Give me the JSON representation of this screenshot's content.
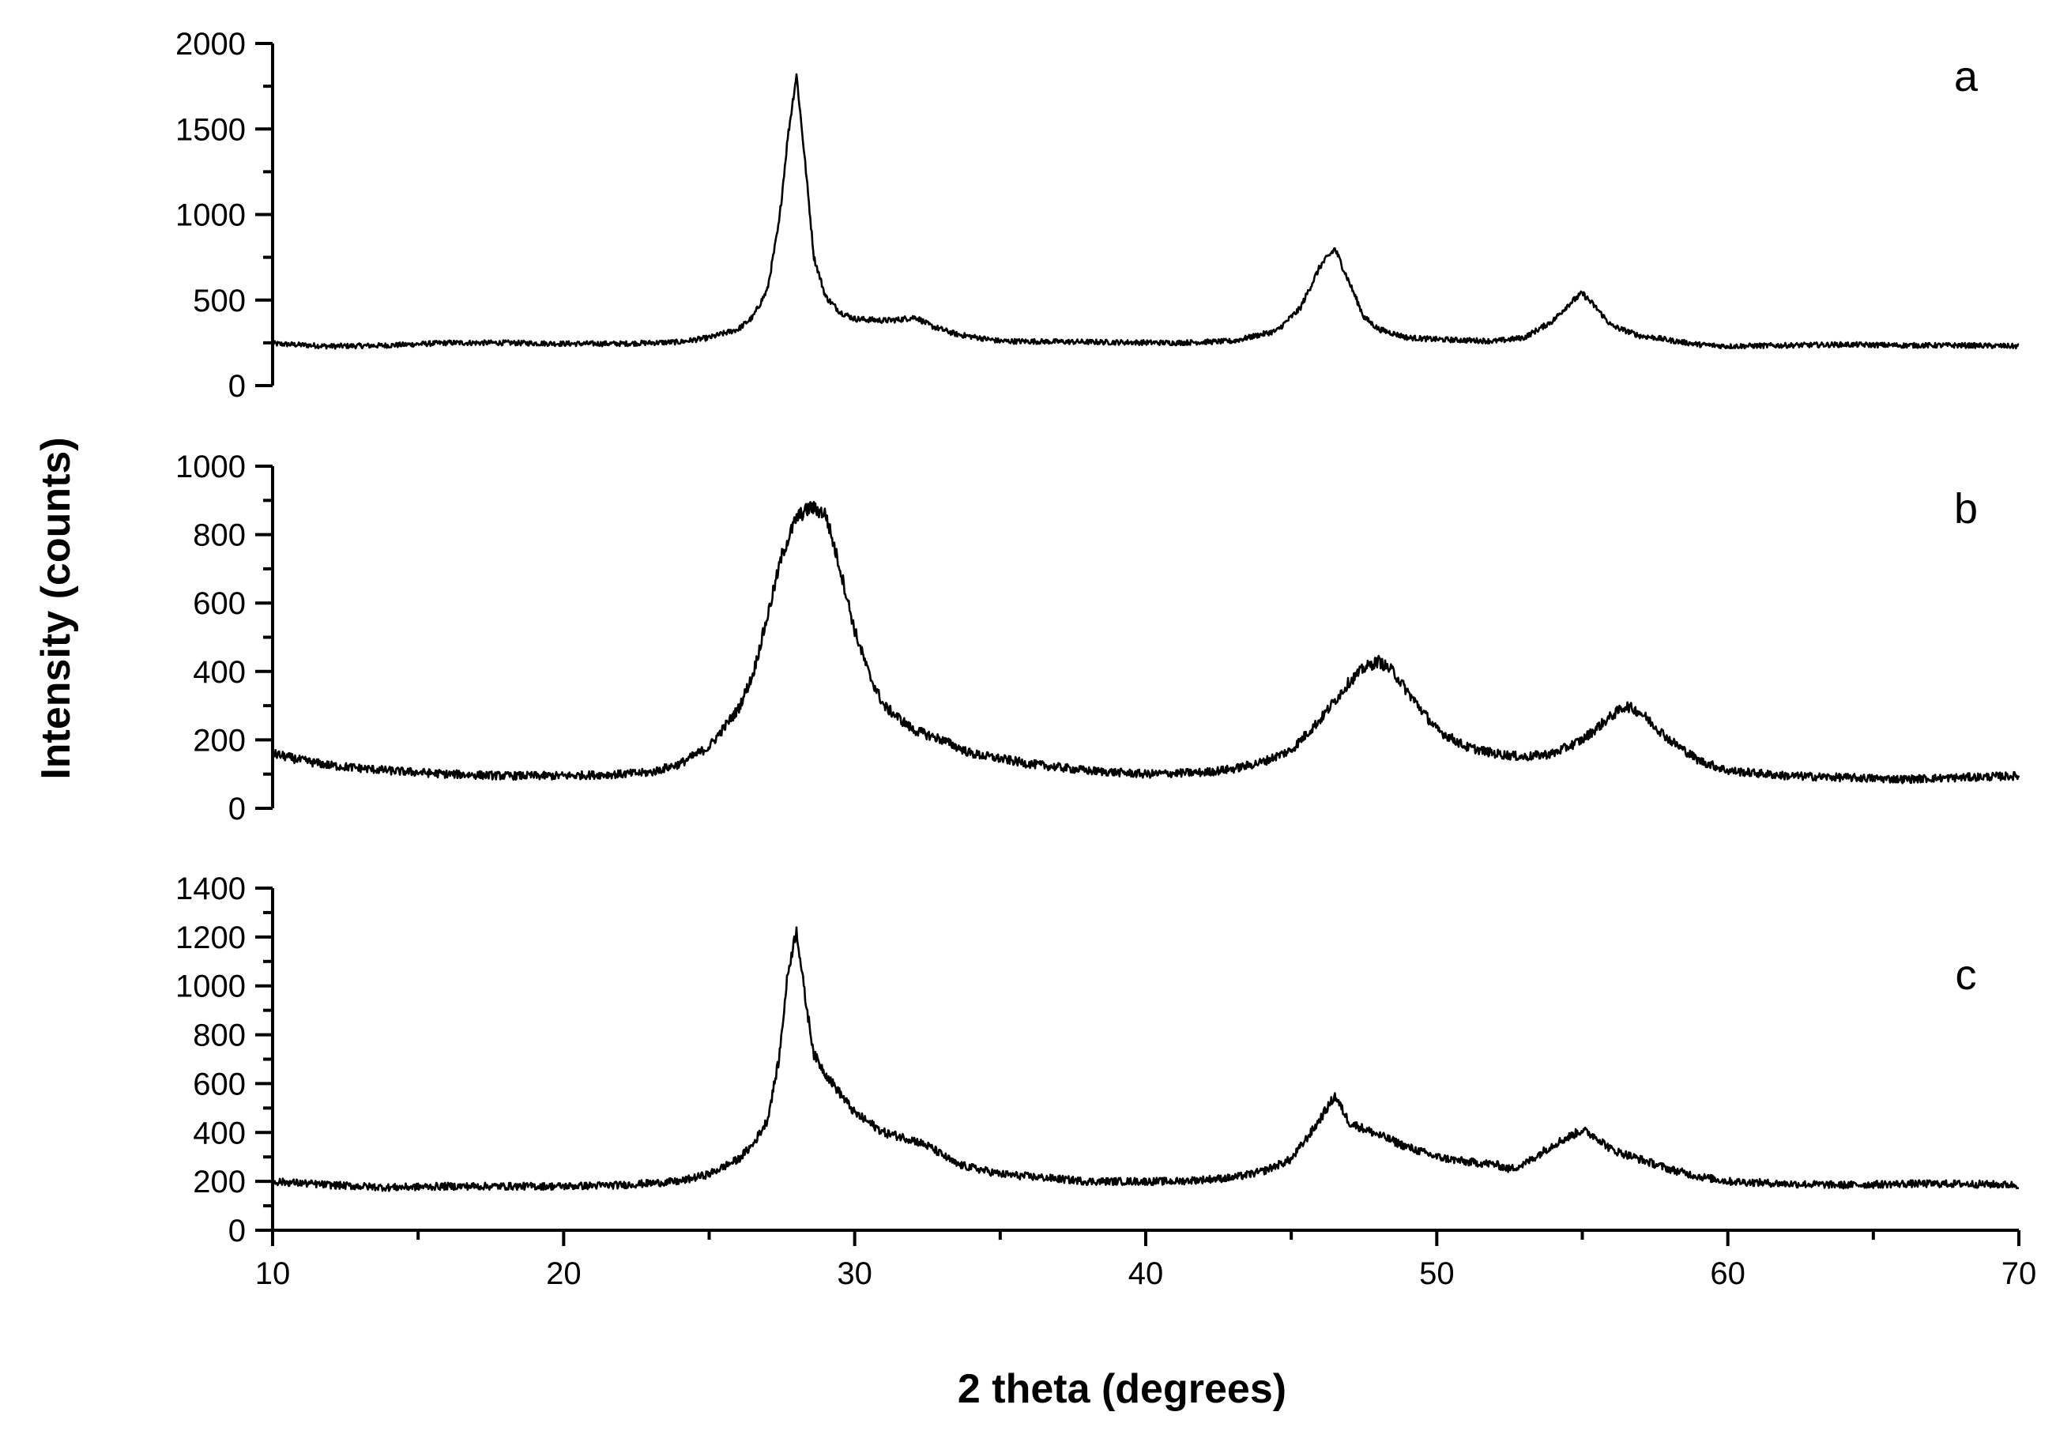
{
  "chart_data": {
    "type": "line",
    "xlabel": "2 theta (degrees)",
    "ylabel": "Intensity (counts)",
    "xlim": [
      10,
      70
    ],
    "x_ticks": [
      10,
      20,
      30,
      40,
      50,
      60,
      70
    ],
    "x_minor_step": 5,
    "grid": false,
    "legend": "none",
    "line_color": "#000000",
    "panels": [
      {
        "label": "a",
        "ylim": [
          0,
          2000
        ],
        "y_ticks": [
          0,
          500,
          1000,
          1500,
          2000
        ],
        "y_minor_step": 250,
        "baseline": 240,
        "noise": 15,
        "x": [
          10,
          12,
          14,
          16,
          18,
          20,
          22,
          24,
          25,
          26,
          26.5,
          27,
          27.4,
          27.7,
          28.0,
          28.3,
          28.6,
          29.0,
          29.5,
          30,
          31,
          31.5,
          32.1,
          32.6,
          33.5,
          35,
          38,
          41,
          43,
          44.5,
          45.3,
          46.0,
          46.5,
          47.0,
          47.5,
          48,
          49,
          50,
          52,
          53,
          54,
          54.5,
          55.0,
          55.5,
          56,
          57,
          57.5,
          58,
          59,
          60,
          62,
          64,
          66,
          68,
          70
        ],
        "y": [
          245,
          230,
          235,
          250,
          250,
          245,
          245,
          255,
          280,
          330,
          400,
          560,
          950,
          1450,
          1820,
          1300,
          750,
          520,
          430,
          390,
          380,
          385,
          400,
          350,
          300,
          260,
          255,
          250,
          260,
          320,
          450,
          700,
          800,
          600,
          400,
          330,
          280,
          270,
          260,
          280,
          380,
          470,
          540,
          450,
          350,
          290,
          280,
          265,
          240,
          230,
          235,
          240,
          235,
          235,
          230
        ]
      },
      {
        "label": "b",
        "ylim": [
          0,
          1000
        ],
        "y_ticks": [
          0,
          200,
          400,
          600,
          800,
          1000
        ],
        "y_minor_step": 100,
        "baseline": 100,
        "noise": 12,
        "x": [
          10,
          11,
          12,
          14,
          16,
          18,
          20,
          22,
          23,
          24,
          25,
          26,
          26.5,
          27,
          27.5,
          28,
          28.5,
          29,
          29.5,
          30,
          30.5,
          31,
          32,
          33,
          34,
          36,
          38,
          40,
          42,
          43,
          44,
          45,
          46,
          47,
          47.5,
          48,
          48.5,
          49,
          50,
          51,
          52,
          53,
          54,
          55,
          56,
          56.5,
          57,
          58,
          59,
          60,
          62,
          64,
          66,
          68,
          70
        ],
        "y": [
          160,
          140,
          125,
          110,
          100,
          95,
          95,
          100,
          105,
          130,
          180,
          290,
          390,
          560,
          740,
          850,
          880,
          860,
          700,
          520,
          390,
          300,
          230,
          200,
          160,
          130,
          110,
          100,
          105,
          115,
          135,
          170,
          260,
          370,
          410,
          430,
          400,
          340,
          230,
          180,
          160,
          150,
          160,
          200,
          270,
          300,
          280,
          200,
          140,
          110,
          95,
          90,
          85,
          90,
          95
        ]
      },
      {
        "label": "c",
        "ylim": [
          0,
          1400
        ],
        "y_ticks": [
          0,
          200,
          400,
          600,
          800,
          1000,
          1200,
          1400
        ],
        "y_minor_step": 100,
        "baseline": 185,
        "noise": 15,
        "x": [
          10,
          12,
          14,
          16,
          18,
          20,
          22,
          24,
          25,
          26,
          26.5,
          27,
          27.4,
          27.7,
          28.0,
          28.3,
          28.6,
          29,
          29.5,
          30,
          31,
          32,
          32.6,
          33.5,
          35,
          38,
          41,
          43,
          44,
          45,
          45.8,
          46.5,
          47,
          48,
          49,
          50,
          51,
          52,
          52.5,
          53,
          53.5,
          54,
          54.5,
          55,
          55.5,
          56,
          57,
          58,
          59,
          60,
          62,
          64,
          66,
          68,
          70
        ],
        "y": [
          200,
          185,
          175,
          180,
          180,
          180,
          185,
          200,
          230,
          290,
          350,
          450,
          700,
          1050,
          1230,
          950,
          720,
          640,
          560,
          480,
          400,
          370,
          340,
          270,
          230,
          200,
          200,
          215,
          240,
          290,
          420,
          550,
          440,
          390,
          340,
          300,
          280,
          270,
          250,
          270,
          310,
          350,
          380,
          410,
          380,
          330,
          290,
          250,
          220,
          200,
          190,
          185,
          190,
          190,
          185
        ]
      }
    ]
  }
}
